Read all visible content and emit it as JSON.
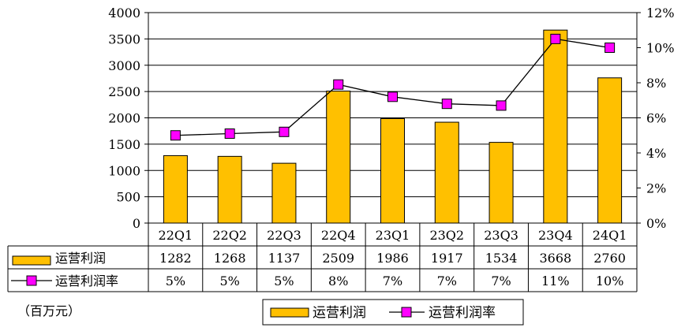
{
  "chart_data": {
    "type": "bar",
    "categories": [
      "22Q1",
      "22Q2",
      "22Q3",
      "22Q4",
      "23Q1",
      "23Q2",
      "23Q3",
      "23Q4",
      "24Q1"
    ],
    "series": [
      {
        "name": "运营利润",
        "type": "bar",
        "axis": "left",
        "color": "#FFC000",
        "values": [
          1282,
          1268,
          1137,
          2509,
          1986,
          1917,
          1534,
          3668,
          2760
        ]
      },
      {
        "name": "运营利润率",
        "type": "line",
        "axis": "right",
        "color": "#FF00FF",
        "values": [
          5.0,
          5.1,
          5.2,
          7.9,
          7.2,
          6.8,
          6.7,
          10.5,
          10.0
        ],
        "table_labels": [
          "5%",
          "5%",
          "5%",
          "8%",
          "7%",
          "7%",
          "7%",
          "11%",
          "10%"
        ]
      }
    ],
    "y_left": {
      "min": 0,
      "max": 4000,
      "step": 500
    },
    "y_right": {
      "min": 0,
      "max": 12,
      "step": 2,
      "suffix": "%"
    },
    "unit_label": "（百万元）",
    "grid": true,
    "legend_position": "bottom-center",
    "data_table": true
  }
}
